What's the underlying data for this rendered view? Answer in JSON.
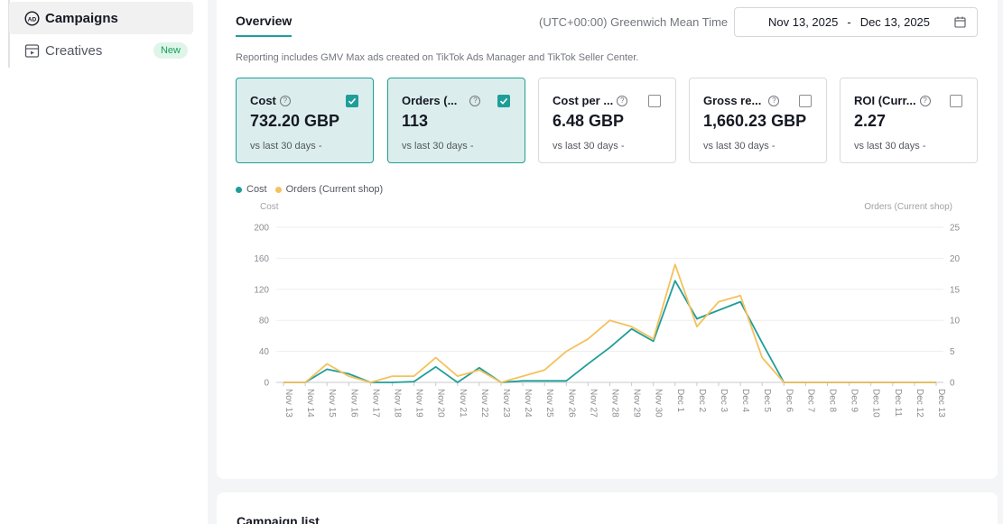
{
  "sidebar": {
    "items": [
      {
        "label": "Campaigns",
        "icon": "ad-icon",
        "active": true
      },
      {
        "label": "Creatives",
        "icon": "creative-icon",
        "badge": "New"
      }
    ]
  },
  "overview": {
    "tab_label": "Overview",
    "timezone": "(UTC+00:00) Greenwich Mean Time",
    "date_start": "Nov 13, 2025",
    "date_sep": "-",
    "date_end": "Dec 13, 2025",
    "note": "Reporting includes GMV Max ads created on TikTok Ads Manager and TikTok Seller Center."
  },
  "metrics": [
    {
      "label": "Cost",
      "value": "732.20 GBP",
      "compare": "vs last 30 days -",
      "checked": true
    },
    {
      "label": "Orders (...",
      "value": "113",
      "compare": "vs last 30 days -",
      "checked": true
    },
    {
      "label": "Cost per ...",
      "value": "6.48 GBP",
      "compare": "vs last 30 days -",
      "checked": false
    },
    {
      "label": "Gross re...",
      "value": "1,660.23 GBP",
      "compare": "vs last 30 days -",
      "checked": false
    },
    {
      "label": "ROI (Curr...",
      "value": "2.27",
      "compare": "vs last 30 days -",
      "checked": false
    }
  ],
  "legend": {
    "cost": "Cost",
    "orders": "Orders (Current shop)"
  },
  "colors": {
    "cost": "#1f9e99",
    "orders": "#f5c15c",
    "accent": "#1f9e99"
  },
  "chart_data": {
    "type": "line",
    "x": [
      "Nov 13",
      "Nov 14",
      "Nov 15",
      "Nov 16",
      "Nov 17",
      "Nov 18",
      "Nov 19",
      "Nov 20",
      "Nov 21",
      "Nov 22",
      "Nov 23",
      "Nov 24",
      "Nov 25",
      "Nov 26",
      "Nov 27",
      "Nov 28",
      "Nov 29",
      "Nov 30",
      "Dec 1",
      "Dec 2",
      "Dec 3",
      "Dec 4",
      "Dec 5",
      "Dec 6",
      "Dec 7",
      "Dec 8",
      "Dec 9",
      "Dec 10",
      "Dec 11",
      "Dec 12",
      "Dec 13"
    ],
    "series": [
      {
        "name": "Cost",
        "axis": "left",
        "values": [
          0,
          0,
          17,
          11,
          0,
          0,
          1,
          20,
          0,
          19,
          0,
          2,
          2,
          2,
          24,
          45,
          69,
          53,
          131,
          82,
          93,
          104,
          51,
          0,
          0,
          0,
          0,
          0,
          0,
          0,
          0
        ]
      },
      {
        "name": "Orders (Current shop)",
        "axis": "right",
        "values": [
          0,
          0,
          3,
          1,
          0,
          1,
          1,
          4,
          1,
          2,
          0,
          1,
          2,
          5,
          7,
          10,
          9,
          7,
          19,
          9,
          13,
          14,
          4,
          0,
          0,
          0,
          0,
          0,
          0,
          0,
          0
        ]
      }
    ],
    "ylabel": "Cost",
    "y2label": "Orders (Current shop)",
    "ylim": [
      0,
      200
    ],
    "yticks": [
      0,
      40,
      80,
      120,
      160,
      200
    ],
    "y2lim": [
      0,
      25
    ],
    "y2ticks": [
      0,
      5,
      10,
      15,
      20,
      25
    ],
    "grid": true
  },
  "campaign_list": {
    "title": "Campaign list"
  }
}
